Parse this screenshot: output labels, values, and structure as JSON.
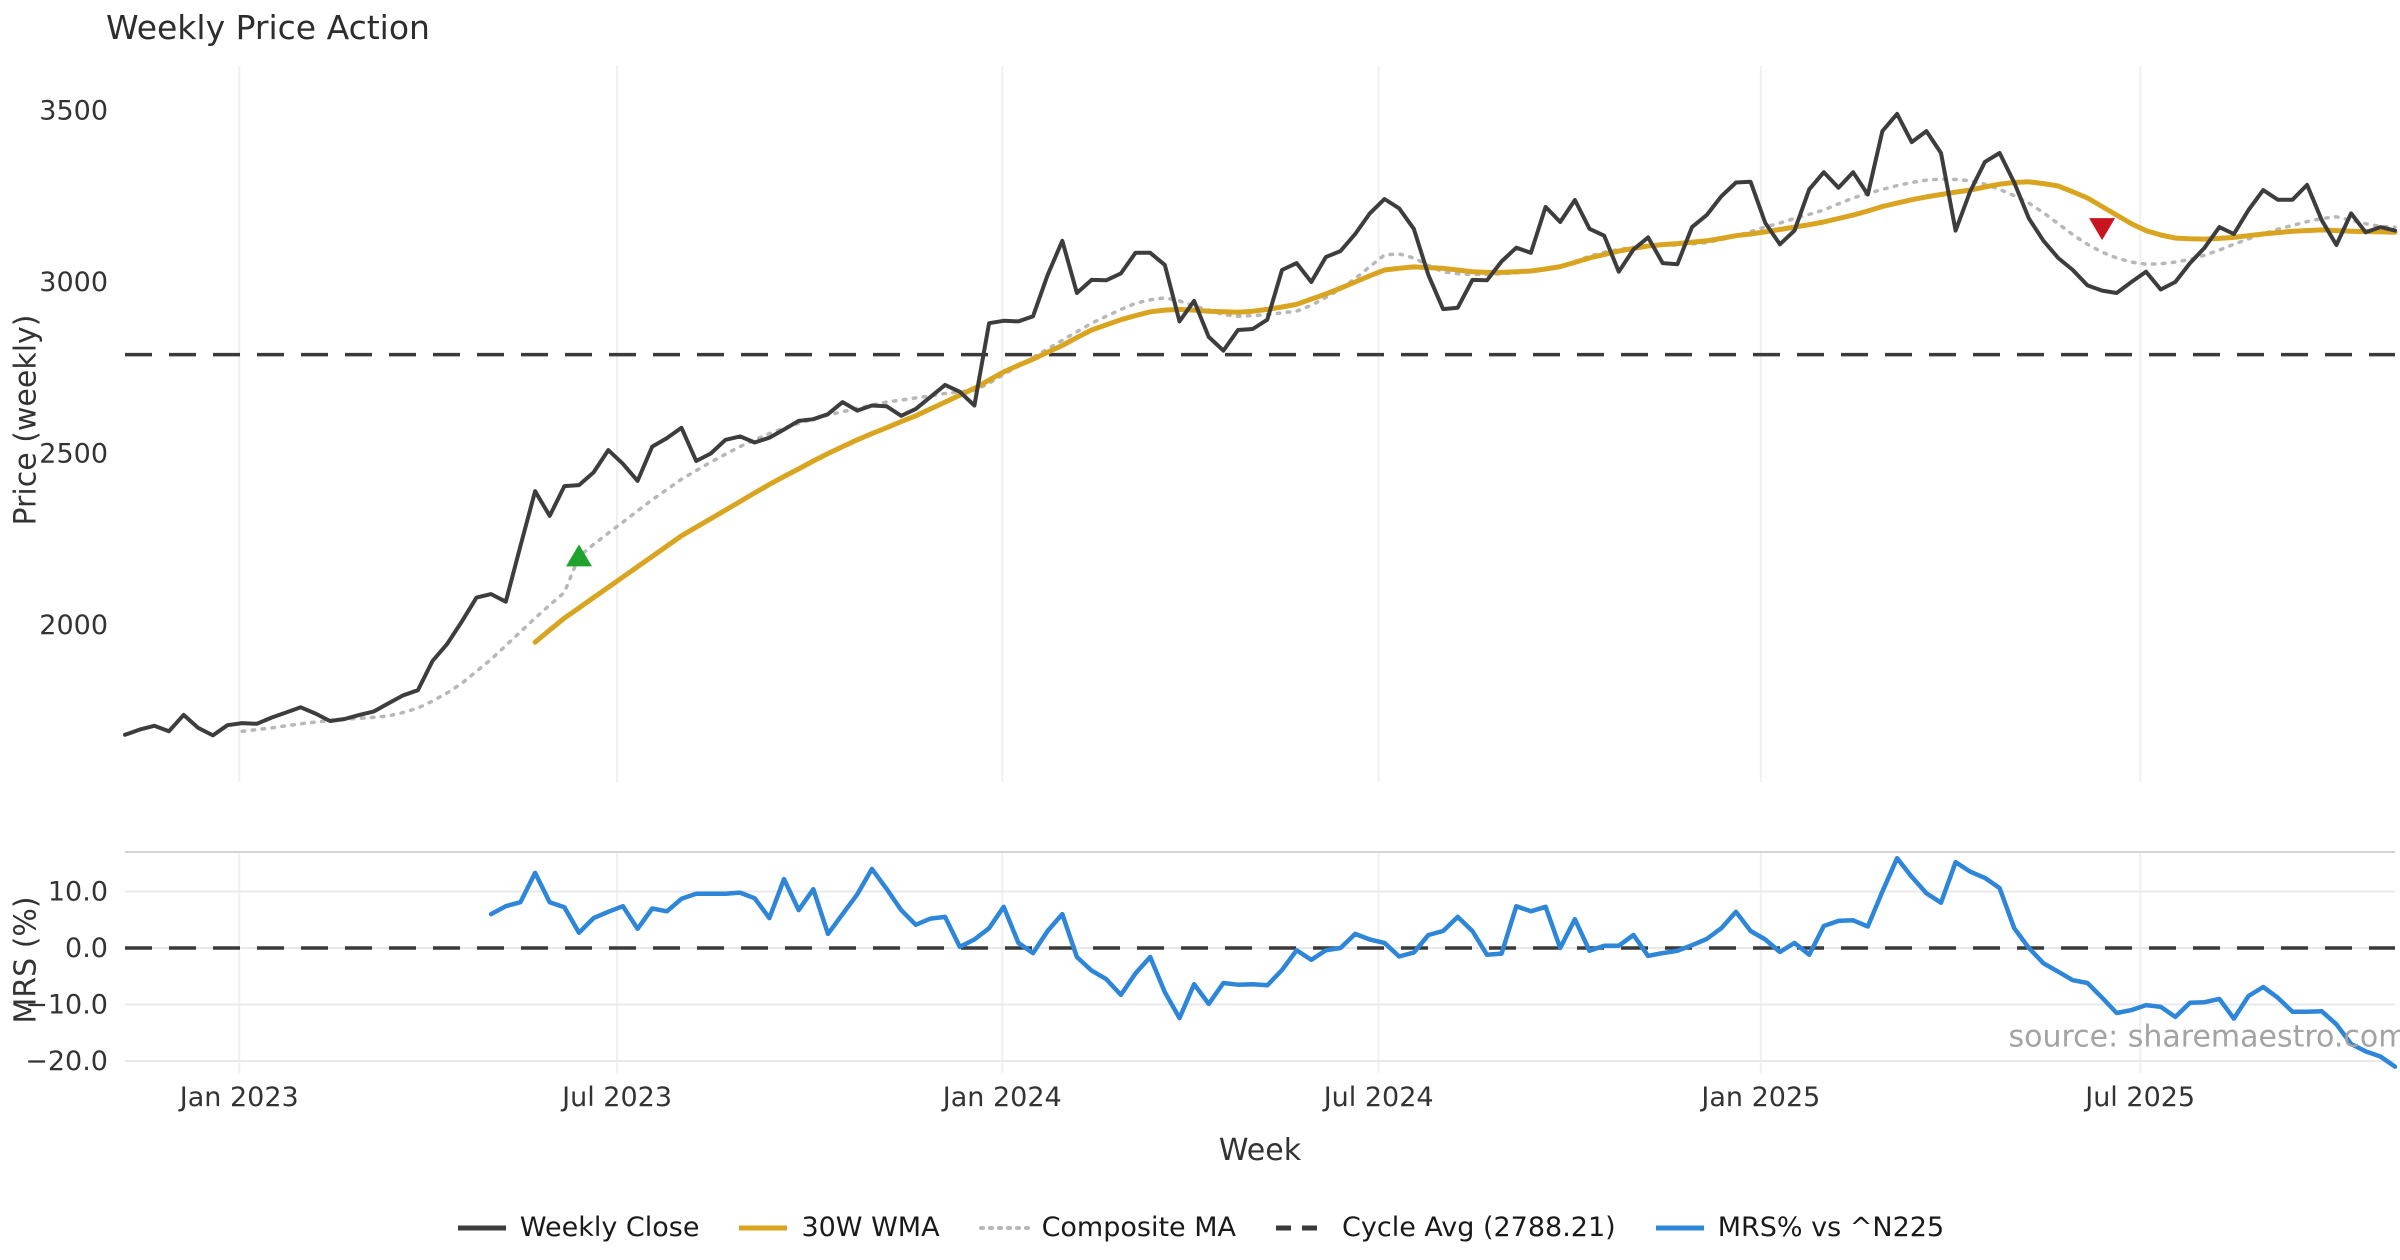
{
  "title": "Weekly Price Action",
  "watermark": "source: sharemaestro.com",
  "colors": {
    "weekly_close": "#3d3d3d",
    "wma_30w": "#d9a521",
    "composite_ma": "#b8b8b8",
    "cycle_avg": "#3a3a3a",
    "mrs": "#2e86d9",
    "buy_marker": "#1fa32c",
    "sell_marker": "#c91422",
    "gridline": "#eef0f3",
    "panel_border": "#d5d5d5"
  },
  "legend": {
    "items": [
      {
        "label": "Weekly Close",
        "style": "solid",
        "color": "#3d3d3d"
      },
      {
        "label": "30W WMA",
        "style": "solid",
        "color": "#d9a521"
      },
      {
        "label": "Composite MA",
        "style": "dotted",
        "color": "#b8b8b8"
      },
      {
        "label": "Cycle Avg (2788.21)",
        "style": "dashed",
        "color": "#3a3a3a"
      },
      {
        "label": "MRS% vs ^N225",
        "style": "solid",
        "color": "#2e86d9"
      }
    ]
  },
  "chart_data": {
    "type": "line",
    "title": "Weekly Price Action",
    "x_axis": {
      "title": "Week",
      "ticks": [
        {
          "label": "Jan 2023",
          "week": 7.8
        },
        {
          "label": "Jul 2023",
          "week": 33.6
        },
        {
          "label": "Jan 2024",
          "week": 59.9
        },
        {
          "label": "Jul 2024",
          "week": 85.6
        },
        {
          "label": "Jan 2025",
          "week": 111.7
        },
        {
          "label": "Jul 2025",
          "week": 137.6
        }
      ],
      "weeks_total": 155
    },
    "panels": [
      {
        "name": "price",
        "ylabel": "Price (weekly)",
        "ylim": [
          1540,
          3630
        ],
        "yticks": [
          {
            "label": "3500",
            "value": 3500
          },
          {
            "label": "3000",
            "value": 3000
          },
          {
            "label": "2500",
            "value": 2500
          },
          {
            "label": "2000",
            "value": 2000
          }
        ],
        "hline": {
          "label": "Cycle Avg (2788.21)",
          "value": 2788.21
        },
        "markers": [
          {
            "type": "buy",
            "shape": "triangle-up",
            "week": 31,
            "value": 2200,
            "color": "#1fa32c"
          },
          {
            "type": "sell",
            "shape": "triangle-down",
            "week": 135,
            "value": 3157,
            "color": "#c91422"
          }
        ],
        "series": [
          {
            "name": "Composite MA",
            "color": "#b8b8b8",
            "dash": "2.5 7.5",
            "width": 3.5,
            "values": [
              null,
              null,
              null,
              null,
              null,
              null,
              null,
              null,
              1690,
              1695,
              1700,
              1706,
              1712,
              1717,
              1722,
              1725,
              1728,
              1731,
              1735,
              1745,
              1758,
              1778,
              1802,
              1830,
              1865,
              1900,
              1940,
              1980,
              2020,
              2058,
              2095,
              2200,
              2235,
              2268,
              2300,
              2333,
              2365,
              2395,
              2425,
              2450,
              2475,
              2498,
              2520,
              2540,
              2558,
              2574,
              2588,
              2600,
              2612,
              2622,
              2632,
              2641,
              2650,
              2656,
              2662,
              2668,
              2675,
              2680,
              2684,
              2705,
              2730,
              2755,
              2780,
              2805,
              2830,
              2855,
              2880,
              2900,
              2920,
              2938,
              2948,
              2954,
              2945,
              2930,
              2918,
              2905,
              2900,
              2902,
              2905,
              2910,
              2915,
              2932,
              2955,
              2980,
              3010,
              3045,
              3079,
              3082,
              3070,
              3048,
              3030,
              3024,
              3022,
              3022,
              3024,
              3027,
              3030,
              3037,
              3045,
              3060,
              3075,
              3087,
              3095,
              3101,
              3105,
              3107,
              3108,
              3111,
              3115,
              3124,
              3135,
              3147,
              3160,
              3172,
              3185,
              3197,
              3210,
              3228,
              3245,
              3258,
              3270,
              3281,
              3290,
              3297,
              3300,
              3299,
              3295,
              3285,
              3270,
              3252,
              3230,
              3202,
              3170,
              3138,
              3110,
              3087,
              3070,
              3058,
              3052,
              3053,
              3058,
              3066,
              3078,
              3093,
              3110,
              3126,
              3140,
              3154,
              3165,
              3176,
              3185,
              3190,
              3180,
              3170,
              3162,
              3160
            ]
          },
          {
            "name": "30W WMA",
            "color": "#d9a521",
            "dash": null,
            "width": 5,
            "values": [
              null,
              null,
              null,
              null,
              null,
              null,
              null,
              null,
              null,
              null,
              null,
              null,
              null,
              null,
              null,
              null,
              null,
              null,
              null,
              null,
              null,
              null,
              null,
              null,
              null,
              null,
              null,
              null,
              1950,
              1985,
              2020,
              2050,
              2080,
              2110,
              2140,
              2170,
              2200,
              2230,
              2260,
              2285,
              2310,
              2335,
              2360,
              2385,
              2410,
              2433,
              2455,
              2478,
              2500,
              2520,
              2540,
              2558,
              2575,
              2593,
              2610,
              2630,
              2650,
              2670,
              2690,
              2714,
              2738,
              2757,
              2775,
              2795,
              2815,
              2838,
              2860,
              2875,
              2890,
              2902,
              2913,
              2918,
              2920,
              2918,
              2915,
              2913,
              2912,
              2915,
              2920,
              2927,
              2935,
              2950,
              2965,
              2982,
              3000,
              3018,
              3035,
              3040,
              3044,
              3042,
              3040,
              3035,
              3030,
              3028,
              3028,
              3030,
              3032,
              3038,
              3045,
              3057,
              3070,
              3080,
              3090,
              3098,
              3105,
              3109,
              3112,
              3116,
              3120,
              3127,
              3135,
              3140,
              3146,
              3153,
              3160,
              3167,
              3175,
              3185,
              3195,
              3207,
              3220,
              3230,
              3240,
              3248,
              3255,
              3262,
              3268,
              3277,
              3285,
              3290,
              3292,
              3287,
              3280,
              3263,
              3245,
              3220,
              3195,
              3170,
              3150,
              3137,
              3128,
              3126,
              3125,
              3127,
              3130,
              3135,
              3140,
              3144,
              3148,
              3150,
              3152,
              3150,
              3148,
              3147,
              3146,
              3145
            ]
          },
          {
            "name": "Weekly Close",
            "color": "#3d3d3d",
            "dash": null,
            "width": 4,
            "values": [
              1680,
              1695,
              1706,
              1690,
              1738,
              1700,
              1678,
              1708,
              1714,
              1712,
              1730,
              1745,
              1760,
              1742,
              1720,
              1726,
              1738,
              1748,
              1772,
              1795,
              1810,
              1895,
              1945,
              2010,
              2080,
              2090,
              2068,
              2230,
              2390,
              2318,
              2405,
              2408,
              2445,
              2510,
              2470,
              2420,
              2520,
              2545,
              2575,
              2478,
              2500,
              2540,
              2550,
              2532,
              2546,
              2570,
              2595,
              2600,
              2615,
              2650,
              2625,
              2640,
              2638,
              2610,
              2630,
              2665,
              2700,
              2680,
              2640,
              2880,
              2887,
              2885,
              2900,
              3020,
              3120,
              2968,
              3006,
              3005,
              3025,
              3085,
              3085,
              3050,
              2885,
              2945,
              2840,
              2800,
              2860,
              2863,
              2890,
              3035,
              3055,
              3000,
              3073,
              3090,
              3140,
              3200,
              3242,
              3215,
              3155,
              3020,
              2921,
              2925,
              3006,
              3005,
              3060,
              3100,
              3085,
              3219,
              3175,
              3239,
              3155,
              3135,
              3030,
              3095,
              3130,
              3055,
              3052,
              3160,
              3195,
              3250,
              3290,
              3292,
              3172,
              3110,
              3150,
              3270,
              3320,
              3275,
              3320,
              3255,
              3440,
              3490,
              3408,
              3440,
              3376,
              3150,
              3265,
              3350,
              3376,
              3290,
              3185,
              3120,
              3070,
              3035,
              2990,
              2975,
              2968,
              3000,
              3030,
              2978,
              3000,
              3055,
              3100,
              3160,
              3140,
              3210,
              3268,
              3240,
              3240,
              3283,
              3180,
              3108,
              3200,
              3145,
              3160,
              3150
            ]
          }
        ]
      },
      {
        "name": "mrs",
        "ylabel": "MRS (%)",
        "ylim": [
          -22.1,
          17.0
        ],
        "yticks": [
          {
            "label": "10.0",
            "value": 10
          },
          {
            "label": "0.0",
            "value": 0
          },
          {
            "label": "−10.0",
            "value": -10
          },
          {
            "label": "−20.0",
            "value": -20
          }
        ],
        "hline": {
          "label": "zero line",
          "value": 0
        },
        "markers": [],
        "series": [
          {
            "name": "MRS% vs ^N225",
            "color": "#2e86d9",
            "dash": null,
            "width": 4.5,
            "values": [
              null,
              null,
              null,
              null,
              null,
              null,
              null,
              null,
              null,
              null,
              null,
              null,
              null,
              null,
              null,
              null,
              null,
              null,
              null,
              null,
              null,
              null,
              null,
              null,
              null,
              6.0,
              7.4,
              8.1,
              13.3,
              8.1,
              7.2,
              2.7,
              5.3,
              6.4,
              7.4,
              3.4,
              7.0,
              6.5,
              8.7,
              9.6,
              9.6,
              9.6,
              9.8,
              8.8,
              5.3,
              12.2,
              6.7,
              10.4,
              2.5,
              6.0,
              9.5,
              14.0,
              10.5,
              6.7,
              4.1,
              5.2,
              5.5,
              0.2,
              1.5,
              3.5,
              7.3,
              0.9,
              -0.9,
              3.0,
              6.0,
              -1.6,
              -4.0,
              -5.5,
              -8.3,
              -4.5,
              -1.6,
              -7.8,
              -12.4,
              -6.4,
              -9.9,
              -6.2,
              -6.5,
              -6.4,
              -6.6,
              -3.9,
              -0.4,
              -2.1,
              -0.4,
              0.0,
              2.5,
              1.5,
              0.9,
              -1.5,
              -0.8,
              2.3,
              3.0,
              5.5,
              3.0,
              -1.2,
              -1.0,
              7.4,
              6.5,
              7.3,
              0.0,
              5.1,
              -0.5,
              0.4,
              0.4,
              2.3,
              -1.4,
              -0.9,
              -0.5,
              0.5,
              1.6,
              3.5,
              6.4,
              3.0,
              1.5,
              -0.7,
              0.9,
              -1.2,
              3.9,
              4.8,
              4.9,
              3.8,
              10.0,
              15.9,
              12.6,
              9.7,
              8.0,
              15.2,
              13.5,
              12.4,
              10.6,
              3.5,
              0.0,
              -2.7,
              -4.2,
              -5.7,
              -6.2,
              -8.8,
              -11.5,
              -11.0,
              -10.1,
              -10.4,
              -12.2,
              -9.7,
              -9.6,
              -9.0,
              -12.5,
              -8.5,
              -6.9,
              -8.8,
              -11.3,
              -11.3,
              -11.2,
              -13.5,
              -17.0,
              -18.3,
              -19.2,
              -21.0
            ]
          }
        ]
      }
    ]
  }
}
